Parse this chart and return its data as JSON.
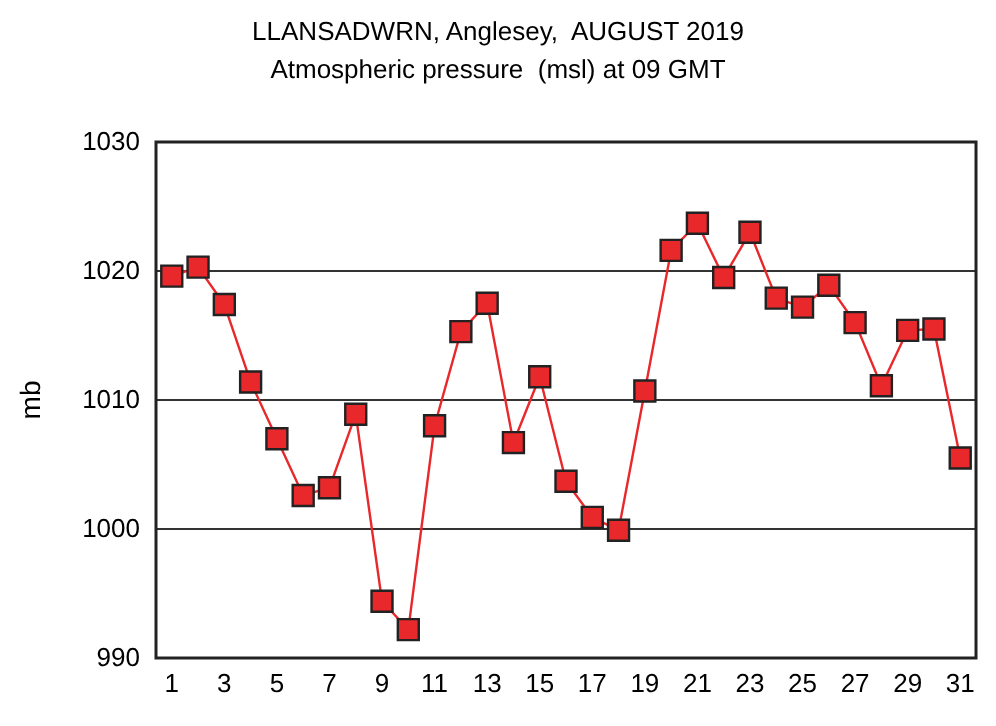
{
  "chart_data": {
    "type": "line",
    "title": "LLANSADWRN, Anglesey,  AUGUST 2019",
    "subtitle": "Atmospheric pressure  (msl) at 09 GMT",
    "ylabel": "mb",
    "x": [
      1,
      2,
      3,
      4,
      5,
      6,
      7,
      8,
      9,
      10,
      11,
      12,
      13,
      14,
      15,
      16,
      17,
      18,
      19,
      20,
      21,
      22,
      23,
      24,
      25,
      26,
      27,
      28,
      29,
      30,
      31
    ],
    "series": [
      {
        "color": "#e8282a",
        "values": [
          1019.6,
          1020.3,
          1017.4,
          1011.4,
          1007,
          1002.6,
          1003.2,
          1008.9,
          994.4,
          992.2,
          1008,
          1015.3,
          1017.5,
          1006.7,
          1011.8,
          1003.7,
          1000.9,
          999.9,
          1010.7,
          1021.6,
          1023.7,
          1019.5,
          1023,
          1017.9,
          1017.2,
          1018.9,
          1016,
          1011.1,
          1015.4,
          1015.5,
          1005.5
        ]
      }
    ],
    "xlim": [
      0.4,
      31.6
    ],
    "xticks": [
      1,
      3,
      5,
      7,
      9,
      11,
      13,
      15,
      17,
      19,
      21,
      23,
      25,
      27,
      29,
      31
    ],
    "ylim": [
      990,
      1030
    ],
    "yticks": [
      990,
      1000,
      1010,
      1020,
      1030
    ],
    "grid": "y",
    "marker": "square",
    "line_style": "solid"
  }
}
